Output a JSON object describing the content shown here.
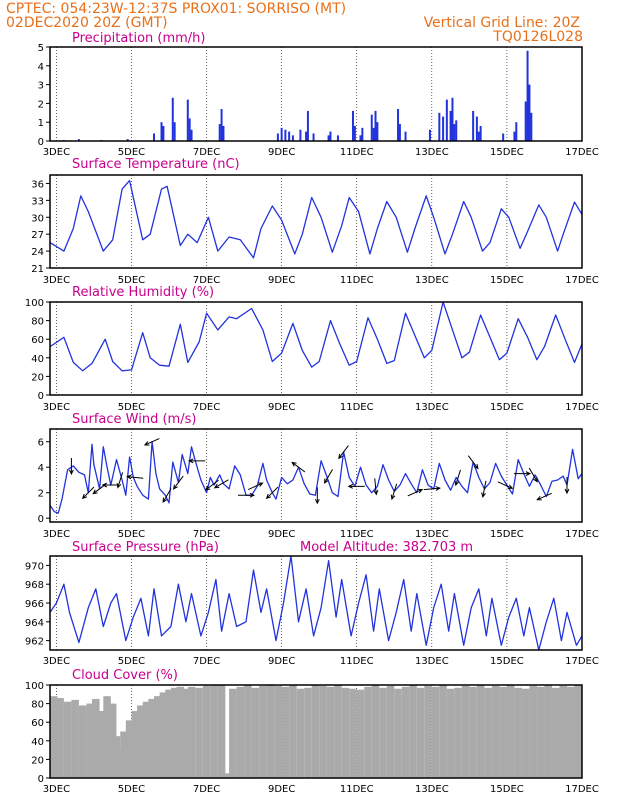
{
  "header": {
    "line1": "CPTEC:   054:23W-12:37S   PROX01: SORRISO (MT)",
    "line2": "02DEC2020 20Z (GMT)",
    "grid_note": "Vertical Grid Line: 20Z",
    "run_id": "TQ0126L028"
  },
  "colors": {
    "header": "#e8701a",
    "panel_title": "#c8008c",
    "series": "#2233dd",
    "cloud": "#aaaaaa",
    "arrow": "#000000",
    "gridline": "#000000"
  },
  "chart_data": [
    {
      "id": "precip",
      "type": "bar",
      "title": "Precipitation (mm/h)",
      "x_start_day": 2.83,
      "x_end_day": 17.0,
      "x_tick_labels": [
        "3DEC",
        "5DEC",
        "7DEC",
        "9DEC",
        "11DEC",
        "13DEC",
        "15DEC",
        "17DEC"
      ],
      "ylim": [
        0,
        5
      ],
      "yticks": [
        0,
        1,
        2,
        3,
        4,
        5
      ],
      "grid": "vertical dotted at 20Z",
      "x": [
        3.2,
        3.6,
        4.2,
        4.9,
        5.6,
        5.8,
        5.85,
        6.1,
        6.15,
        6.5,
        6.55,
        6.6,
        7.35,
        7.4,
        7.45,
        8.9,
        9.0,
        9.1,
        9.2,
        9.3,
        9.5,
        9.65,
        9.7,
        9.85,
        10.25,
        10.3,
        10.5,
        10.9,
        10.95,
        11.1,
        11.15,
        11.4,
        11.45,
        11.5,
        11.55,
        12.1,
        12.15,
        12.3,
        12.95,
        13.2,
        13.3,
        13.4,
        13.5,
        13.55,
        13.6,
        13.65,
        14.1,
        14.2,
        14.25,
        14.3,
        14.9,
        15.2,
        15.25,
        15.5,
        15.55,
        15.6,
        15.65
      ],
      "values": [
        0.05,
        0.1,
        0.05,
        0.1,
        0.4,
        1.0,
        0.8,
        2.3,
        1.0,
        2.2,
        1.2,
        0.6,
        0.9,
        1.7,
        0.8,
        0.4,
        0.7,
        0.6,
        0.5,
        0.3,
        0.6,
        0.5,
        1.6,
        0.4,
        0.3,
        0.5,
        0.3,
        1.6,
        0.8,
        0.3,
        0.7,
        1.4,
        0.7,
        1.6,
        1.0,
        1.7,
        0.9,
        0.5,
        0.6,
        1.5,
        1.3,
        2.2,
        1.6,
        2.3,
        0.9,
        1.1,
        1.6,
        1.3,
        0.5,
        0.8,
        0.4,
        0.5,
        1.0,
        2.1,
        4.8,
        3.0,
        1.5
      ]
    },
    {
      "id": "temp",
      "type": "line",
      "title": "Surface Temperature (nC)",
      "x_start_day": 2.83,
      "x_end_day": 17.0,
      "x_tick_labels": [
        "3DEC",
        "5DEC",
        "7DEC",
        "9DEC",
        "11DEC",
        "13DEC",
        "15DEC",
        "17DEC"
      ],
      "ylim": [
        21,
        37.5
      ],
      "yticks": [
        21,
        24,
        27,
        30,
        33,
        36
      ],
      "grid": "vertical dotted at 20Z",
      "x": [
        2.83,
        3.2,
        3.45,
        3.65,
        3.85,
        4.25,
        4.5,
        4.75,
        4.95,
        5.3,
        5.5,
        5.8,
        5.95,
        6.3,
        6.5,
        6.75,
        7.05,
        7.3,
        7.6,
        7.9,
        8.25,
        8.45,
        8.75,
        9.0,
        9.35,
        9.55,
        9.8,
        10.05,
        10.35,
        10.6,
        10.8,
        11.05,
        11.35,
        11.55,
        11.8,
        12.05,
        12.35,
        12.55,
        12.85,
        13.05,
        13.35,
        13.55,
        13.85,
        14.05,
        14.35,
        14.55,
        14.85,
        15.05,
        15.35,
        15.55,
        15.85,
        16.05,
        16.35,
        16.5,
        16.8,
        17.0
      ],
      "values": [
        25.5,
        24.0,
        28,
        33.8,
        31,
        24,
        26,
        35,
        36.5,
        26,
        27,
        35,
        35.5,
        25,
        27,
        25.5,
        30,
        24,
        26.5,
        26,
        22.8,
        28,
        32,
        29.5,
        23.5,
        27,
        33.5,
        30,
        23.8,
        28.5,
        33.5,
        31,
        23.5,
        28,
        32.8,
        30,
        23.8,
        28,
        33.8,
        30,
        23.5,
        27,
        32.8,
        30,
        24,
        25.5,
        31.5,
        30,
        24.5,
        27.5,
        32.2,
        30,
        24,
        27,
        32.7,
        30.5
      ]
    },
    {
      "id": "rh",
      "type": "line",
      "title": "Relative Humidity (%)",
      "x_start_day": 2.83,
      "x_end_day": 17.0,
      "x_tick_labels": [
        "3DEC",
        "5DEC",
        "7DEC",
        "9DEC",
        "11DEC",
        "13DEC",
        "15DEC",
        "17DEC"
      ],
      "ylim": [
        0,
        100
      ],
      "yticks": [
        0,
        20,
        40,
        60,
        80,
        100
      ],
      "grid": "vertical dotted at 20Z",
      "x": [
        2.83,
        3.2,
        3.45,
        3.7,
        3.95,
        4.3,
        4.5,
        4.75,
        5.0,
        5.3,
        5.5,
        5.75,
        6.0,
        6.3,
        6.5,
        6.8,
        7.0,
        7.3,
        7.6,
        7.8,
        8.2,
        8.5,
        8.75,
        9.0,
        9.3,
        9.55,
        9.8,
        10.0,
        10.3,
        10.55,
        10.8,
        11.0,
        11.3,
        11.55,
        11.8,
        12.0,
        12.3,
        12.55,
        12.8,
        13.0,
        13.3,
        13.55,
        13.8,
        14.0,
        14.3,
        14.55,
        14.8,
        15.0,
        15.3,
        15.55,
        15.8,
        16.0,
        16.3,
        16.55,
        16.8,
        17.0
      ],
      "values": [
        52,
        62,
        35,
        26,
        34,
        60,
        36,
        26,
        27,
        67,
        40,
        32,
        31,
        76,
        35,
        57,
        88,
        70,
        84,
        82,
        93,
        70,
        36,
        45,
        77,
        48,
        30,
        36,
        80,
        55,
        32,
        36,
        83,
        60,
        34,
        37,
        88,
        64,
        40,
        48,
        100,
        70,
        40,
        46,
        86,
        62,
        38,
        45,
        82,
        62,
        38,
        52,
        86,
        60,
        35,
        55
      ]
    },
    {
      "id": "wind",
      "type": "line",
      "title": "Surface Wind (m/s)",
      "x_start_day": 2.83,
      "x_end_day": 17.0,
      "x_tick_labels": [
        "3DEC",
        "5DEC",
        "7DEC",
        "9DEC",
        "11DEC",
        "13DEC",
        "15DEC",
        "17DEC"
      ],
      "ylim": [
        -0.3,
        7
      ],
      "yticks": [
        0,
        2,
        4,
        6
      ],
      "grid": "vertical dotted at 20Z",
      "x": [
        2.83,
        2.95,
        3.05,
        3.15,
        3.3,
        3.45,
        3.6,
        3.75,
        3.85,
        3.95,
        4.0,
        4.15,
        4.25,
        4.35,
        4.45,
        4.6,
        4.75,
        4.85,
        4.95,
        5.05,
        5.15,
        5.3,
        5.45,
        5.55,
        5.65,
        5.75,
        5.9,
        6.0,
        6.1,
        6.25,
        6.35,
        6.5,
        6.6,
        6.7,
        6.85,
        7.0,
        7.1,
        7.2,
        7.35,
        7.45,
        7.6,
        7.75,
        7.9,
        8.05,
        8.2,
        8.35,
        8.5,
        8.6,
        8.75,
        8.85,
        9.0,
        9.15,
        9.3,
        9.45,
        9.6,
        9.75,
        9.9,
        10.05,
        10.2,
        10.35,
        10.5,
        10.65,
        10.8,
        10.95,
        11.1,
        11.25,
        11.4,
        11.55,
        11.7,
        11.85,
        12.0,
        12.15,
        12.3,
        12.45,
        12.6,
        12.75,
        12.9,
        13.05,
        13.2,
        13.35,
        13.5,
        13.65,
        13.8,
        13.95,
        14.1,
        14.25,
        14.4,
        14.55,
        14.7,
        14.85,
        15.0,
        15.15,
        15.3,
        15.45,
        15.6,
        15.75,
        15.9,
        16.05,
        16.2,
        16.35,
        16.5,
        16.6,
        16.75,
        16.9,
        17.0
      ],
      "values": [
        1.0,
        0.5,
        0.4,
        1.5,
        3.8,
        4.1,
        3.6,
        3.4,
        2.0,
        5.8,
        4.2,
        2.3,
        5.6,
        4.0,
        2.6,
        4.6,
        3.0,
        1.8,
        4.8,
        3.2,
        2.5,
        1.8,
        1.5,
        6.0,
        3.5,
        2.3,
        1.8,
        1.2,
        4.4,
        2.8,
        5.0,
        3.5,
        5.6,
        4.5,
        3.0,
        2.0,
        3.2,
        2.6,
        3.4,
        2.7,
        2.3,
        4.1,
        3.4,
        1.8,
        1.8,
        2.5,
        4.3,
        3.0,
        2.0,
        1.5,
        3.2,
        2.7,
        3.0,
        4.0,
        2.7,
        1.9,
        1.8,
        4.5,
        3.3,
        2.0,
        1.7,
        5.2,
        3.2,
        2.5,
        4.0,
        2.6,
        2.0,
        2.5,
        4.2,
        3.0,
        2.1,
        2.6,
        3.5,
        2.7,
        2.0,
        3.8,
        2.6,
        2.3,
        4.3,
        3.0,
        2.2,
        3.2,
        2.5,
        2.0,
        4.4,
        3.2,
        2.3,
        2.8,
        4.3,
        3.3,
        2.6,
        1.9,
        4.6,
        3.5,
        2.5,
        3.4,
        2.6,
        1.7,
        2.9,
        3.0,
        3.3,
        2.6,
        5.4,
        3.1,
        3.5
      ],
      "arrows": [
        {
          "day": 3.4,
          "dx": 0.0,
          "dy": -1.0
        },
        {
          "day": 3.85,
          "dx": -0.7,
          "dy": -0.7
        },
        {
          "day": 4.15,
          "dx": -0.8,
          "dy": -0.6
        },
        {
          "day": 4.45,
          "dx": -1.0,
          "dy": 0.0
        },
        {
          "day": 4.7,
          "dx": -0.3,
          "dy": -0.95
        },
        {
          "day": 5.1,
          "dx": -1.0,
          "dy": 0.1
        },
        {
          "day": 5.55,
          "dx": -0.9,
          "dy": -0.4
        },
        {
          "day": 5.95,
          "dx": -0.5,
          "dy": -0.85
        },
        {
          "day": 6.25,
          "dx": -0.6,
          "dy": -0.8
        },
        {
          "day": 6.75,
          "dx": -1.0,
          "dy": 0.0
        },
        {
          "day": 7.15,
          "dx": -0.8,
          "dy": -0.6
        },
        {
          "day": 7.4,
          "dx": -0.85,
          "dy": -0.5
        },
        {
          "day": 8.05,
          "dx": 1.0,
          "dy": 0.0
        },
        {
          "day": 8.3,
          "dx": 0.9,
          "dy": 0.4
        },
        {
          "day": 8.75,
          "dx": -0.7,
          "dy": -0.7
        },
        {
          "day": 9.45,
          "dx": -0.8,
          "dy": 0.6
        },
        {
          "day": 9.95,
          "dx": 0.0,
          "dy": -1.0
        },
        {
          "day": 10.25,
          "dx": -0.5,
          "dy": -0.85
        },
        {
          "day": 10.65,
          "dx": -0.6,
          "dy": -0.8
        },
        {
          "day": 11.0,
          "dx": -1.0,
          "dy": 0.0
        },
        {
          "day": 11.5,
          "dx": 0.1,
          "dy": -1.0
        },
        {
          "day": 12.0,
          "dx": -0.3,
          "dy": -0.95
        },
        {
          "day": 12.55,
          "dx": 0.9,
          "dy": 0.4
        },
        {
          "day": 13.0,
          "dx": 1.0,
          "dy": 0.1
        },
        {
          "day": 13.7,
          "dx": -0.3,
          "dy": -0.95
        },
        {
          "day": 14.1,
          "dx": 0.6,
          "dy": -0.8
        },
        {
          "day": 14.4,
          "dx": -0.2,
          "dy": -1.0
        },
        {
          "day": 14.95,
          "dx": 0.9,
          "dy": -0.4
        },
        {
          "day": 15.4,
          "dx": 1.0,
          "dy": 0.0
        },
        {
          "day": 15.7,
          "dx": 0.5,
          "dy": -0.85
        },
        {
          "day": 16.0,
          "dx": -0.9,
          "dy": -0.4
        },
        {
          "day": 16.6,
          "dx": 0.0,
          "dy": -1.0
        }
      ]
    },
    {
      "id": "pressure",
      "type": "line",
      "title": "Surface Pressure (hPa)",
      "annotation": "Model Altitude: 382.703 m",
      "x_start_day": 2.83,
      "x_end_day": 17.0,
      "x_tick_labels": [
        "3DEC",
        "5DEC",
        "7DEC",
        "9DEC",
        "11DEC",
        "13DEC",
        "15DEC",
        "17DEC"
      ],
      "ylim": [
        961,
        971
      ],
      "yticks": [
        962,
        964,
        966,
        968,
        970
      ],
      "grid": "vertical dotted at 20Z",
      "x": [
        2.83,
        3.0,
        3.2,
        3.35,
        3.6,
        3.85,
        4.05,
        4.25,
        4.45,
        4.6,
        4.85,
        5.05,
        5.25,
        5.45,
        5.6,
        5.8,
        6.05,
        6.25,
        6.45,
        6.6,
        6.85,
        7.05,
        7.25,
        7.4,
        7.6,
        7.8,
        8.05,
        8.25,
        8.45,
        8.6,
        8.85,
        9.05,
        9.25,
        9.45,
        9.65,
        9.85,
        10.05,
        10.25,
        10.45,
        10.6,
        10.85,
        11.05,
        11.25,
        11.45,
        11.6,
        11.85,
        12.05,
        12.25,
        12.45,
        12.6,
        12.85,
        13.05,
        13.25,
        13.45,
        13.6,
        13.85,
        14.05,
        14.25,
        14.45,
        14.6,
        14.85,
        15.05,
        15.25,
        15.45,
        15.6,
        15.85,
        16.05,
        16.25,
        16.45,
        16.6,
        16.85,
        17.0
      ],
      "values": [
        965,
        966,
        968,
        965,
        961.8,
        965.5,
        967.5,
        963.5,
        966,
        967,
        962,
        964.5,
        966.5,
        962.5,
        967.5,
        962.5,
        963.5,
        968,
        964,
        967,
        962.5,
        965,
        968.5,
        963,
        967,
        963.5,
        964,
        969.5,
        965,
        967.5,
        962,
        966,
        971,
        964,
        967.5,
        962.5,
        965.5,
        970.5,
        964.5,
        968.5,
        962.5,
        966,
        969,
        963,
        967.5,
        962,
        965,
        968.5,
        963,
        967,
        961.5,
        965.5,
        968,
        963,
        967,
        961.5,
        965.5,
        967.5,
        962.5,
        966.5,
        961.5,
        964.5,
        966.5,
        962.5,
        965.5,
        961,
        964,
        966.5,
        962,
        965,
        961.5,
        962.5
      ]
    },
    {
      "id": "cloud",
      "type": "bar",
      "title": "Cloud Cover (%)",
      "x_start_day": 2.83,
      "x_end_day": 17.0,
      "x_tick_labels": [
        "3DEC",
        "5DEC",
        "7DEC",
        "9DEC",
        "11DEC",
        "13DEC",
        "15DEC",
        "17DEC"
      ],
      "ylim": [
        0,
        100
      ],
      "yticks": [
        0,
        20,
        40,
        60,
        80,
        100
      ],
      "grid": "vertical dotted at 20Z",
      "x": [
        2.83,
        3.0,
        3.2,
        3.4,
        3.6,
        3.8,
        3.95,
        4.1,
        4.25,
        4.4,
        4.5,
        4.55,
        4.6,
        4.7,
        4.85,
        5.0,
        5.15,
        5.3,
        5.45,
        5.6,
        5.75,
        5.9,
        6.05,
        6.2,
        6.35,
        6.5,
        6.7,
        6.9,
        7.1,
        7.3,
        7.5,
        7.6,
        7.8,
        8.0,
        8.2,
        8.4,
        8.6,
        8.8,
        9.0,
        9.2,
        9.4,
        9.6,
        9.8,
        10.0,
        10.2,
        10.4,
        10.6,
        10.8,
        11.0,
        11.2,
        11.4,
        11.6,
        11.8,
        12.0,
        12.2,
        12.4,
        12.6,
        12.8,
        13.0,
        13.2,
        13.4,
        13.6,
        13.8,
        14.0,
        14.2,
        14.4,
        14.6,
        14.8,
        15.0,
        15.2,
        15.4,
        15.6,
        15.8,
        16.0,
        16.2,
        16.4,
        16.6,
        16.8,
        17.0
      ],
      "values": [
        88,
        86,
        82,
        84,
        78,
        80,
        85,
        72,
        88,
        80,
        45,
        5,
        30,
        50,
        62,
        72,
        78,
        82,
        85,
        88,
        92,
        95,
        97,
        98,
        96,
        98,
        97,
        99,
        100,
        100,
        5,
        96,
        98,
        100,
        97,
        99,
        100,
        99,
        98,
        100,
        96,
        97,
        100,
        99,
        98,
        100,
        97,
        96,
        95,
        98,
        100,
        97,
        99,
        96,
        98,
        100,
        97,
        99,
        98,
        100,
        96,
        97,
        99,
        98,
        100,
        97,
        99,
        98,
        100,
        97,
        96,
        99,
        98,
        100,
        97,
        99,
        98,
        100,
        99
      ]
    }
  ]
}
